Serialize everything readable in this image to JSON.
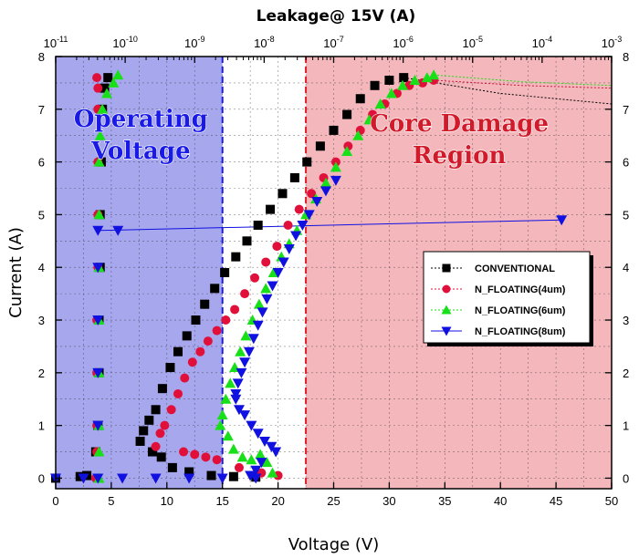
{
  "chart_data": {
    "type": "scatter",
    "xlabel": "Voltage (V)",
    "ylabel": "Current (A)",
    "top_axis_title": "Leakage@ 15V (A)",
    "xlim": [
      0,
      50
    ],
    "ylim": [
      -0.2,
      8
    ],
    "top_xlim_log10": [
      -11,
      -3
    ],
    "x_ticks": [
      "0",
      "5",
      "10",
      "15",
      "20",
      "25",
      "30",
      "35",
      "40",
      "45",
      "50"
    ],
    "y_ticks": [
      "0",
      "1",
      "2",
      "3",
      "4",
      "5",
      "6",
      "7",
      "8"
    ],
    "top_tick_labels": [
      {
        "base": "10",
        "exp": "-11"
      },
      {
        "base": "10",
        "exp": "-10"
      },
      {
        "base": "10",
        "exp": "-9"
      },
      {
        "base": "10",
        "exp": "-8"
      },
      {
        "base": "10",
        "exp": "-7"
      },
      {
        "base": "10",
        "exp": "-6"
      },
      {
        "base": "10",
        "exp": "-5"
      },
      {
        "base": "10",
        "exp": "-4"
      },
      {
        "base": "10",
        "exp": "-3"
      }
    ],
    "grid": true,
    "regions": [
      {
        "label_lines": [
          "Operating",
          "Voltage"
        ],
        "x_range": [
          0,
          15
        ],
        "color": "#a7a7ee",
        "text_color": "#1a1ae6",
        "border": "#1a1ae6"
      },
      {
        "label_lines": [
          "Core Damage",
          "Region"
        ],
        "x_range": [
          22.5,
          50
        ],
        "color": "#f4b8bc",
        "text_color": "#d11a2a",
        "border": "#e0202a"
      }
    ],
    "legend_position": "right-middle",
    "series": [
      {
        "name": "CONVENTIONAL",
        "marker": "square",
        "color": "#000000",
        "points": [
          [
            0,
            0
          ],
          [
            2.2,
            0.03
          ],
          [
            2.8,
            0.05
          ],
          [
            3.6,
            0.5
          ],
          [
            3.8,
            1.0
          ],
          [
            3.9,
            2.0
          ],
          [
            3.9,
            3.0
          ],
          [
            4.0,
            4.0
          ],
          [
            4.0,
            5.0
          ],
          [
            4.1,
            6.0
          ],
          [
            4.2,
            7.0
          ],
          [
            4.4,
            7.4
          ],
          [
            4.7,
            7.6
          ],
          [
            7.6,
            0.7
          ],
          [
            7.9,
            0.9
          ],
          [
            8.4,
            1.1
          ],
          [
            9.0,
            1.3
          ],
          [
            9.6,
            1.7
          ],
          [
            10.3,
            2.1
          ],
          [
            11.0,
            2.4
          ],
          [
            11.8,
            2.7
          ],
          [
            12.6,
            3.0
          ],
          [
            13.4,
            3.3
          ],
          [
            14.3,
            3.6
          ],
          [
            15.2,
            3.9
          ],
          [
            16.2,
            4.2
          ],
          [
            17.2,
            4.5
          ],
          [
            18.2,
            4.8
          ],
          [
            19.3,
            5.1
          ],
          [
            20.4,
            5.4
          ],
          [
            21.5,
            5.7
          ],
          [
            22.6,
            6.0
          ],
          [
            23.8,
            6.3
          ],
          [
            25.0,
            6.6
          ],
          [
            26.2,
            6.9
          ],
          [
            27.4,
            7.2
          ],
          [
            28.7,
            7.45
          ],
          [
            30.0,
            7.55
          ],
          [
            31.3,
            7.6
          ],
          [
            8.7,
            0.5
          ],
          [
            9.5,
            0.4
          ],
          [
            10.5,
            0.2
          ],
          [
            12,
            0.12
          ],
          [
            14,
            0.05
          ],
          [
            16,
            0.03
          ],
          [
            18,
            0.02
          ]
        ]
      },
      {
        "name": "N_FLOATING(4um)",
        "marker": "circle",
        "color": "#e0103a",
        "points": [
          [
            3.6,
            0.0
          ],
          [
            3.7,
            0.5
          ],
          [
            3.7,
            1.0
          ],
          [
            3.7,
            2.0
          ],
          [
            3.7,
            3.0
          ],
          [
            3.8,
            4.0
          ],
          [
            3.8,
            5.0
          ],
          [
            3.8,
            6.0
          ],
          [
            3.8,
            7.0
          ],
          [
            3.8,
            7.4
          ],
          [
            3.7,
            7.6
          ],
          [
            9.0,
            0.6
          ],
          [
            9.4,
            0.85
          ],
          [
            9.8,
            1.0
          ],
          [
            10.4,
            1.3
          ],
          [
            11.0,
            1.6
          ],
          [
            11.6,
            1.9
          ],
          [
            12.3,
            2.2
          ],
          [
            13.0,
            2.4
          ],
          [
            13.7,
            2.6
          ],
          [
            14.5,
            2.8
          ],
          [
            15.3,
            3.0
          ],
          [
            16.1,
            3.2
          ],
          [
            17.0,
            3.5
          ],
          [
            17.9,
            3.8
          ],
          [
            18.9,
            4.1
          ],
          [
            19.9,
            4.4
          ],
          [
            20.9,
            4.8
          ],
          [
            21.9,
            5.1
          ],
          [
            23.0,
            5.4
          ],
          [
            24.1,
            5.7
          ],
          [
            25.2,
            6.0
          ],
          [
            26.3,
            6.3
          ],
          [
            27.4,
            6.6
          ],
          [
            28.5,
            6.9
          ],
          [
            29.6,
            7.1
          ],
          [
            30.7,
            7.3
          ],
          [
            31.8,
            7.45
          ],
          [
            33.0,
            7.5
          ],
          [
            34.0,
            7.55
          ],
          [
            11.5,
            0.5
          ],
          [
            12.5,
            0.45
          ],
          [
            13.5,
            0.4
          ],
          [
            14.5,
            0.35
          ],
          [
            16.5,
            0.2
          ],
          [
            18.5,
            0.1
          ],
          [
            20,
            0.05
          ]
        ]
      },
      {
        "name": "N_FLOATING(6um)",
        "marker": "triangle-up",
        "color": "#18e018",
        "points": [
          [
            3.9,
            0.0
          ],
          [
            3.9,
            0.5
          ],
          [
            3.9,
            1.0
          ],
          [
            3.9,
            2.0
          ],
          [
            3.9,
            3.0
          ],
          [
            3.9,
            4.0
          ],
          [
            3.9,
            5.0
          ],
          [
            3.9,
            6.0
          ],
          [
            4.0,
            6.5
          ],
          [
            4.2,
            7.0
          ],
          [
            4.6,
            7.3
          ],
          [
            5.2,
            7.5
          ],
          [
            5.6,
            7.65
          ],
          [
            14.8,
            1.0
          ],
          [
            15.0,
            1.2
          ],
          [
            15.3,
            1.5
          ],
          [
            15.7,
            1.8
          ],
          [
            16.1,
            2.1
          ],
          [
            16.6,
            2.4
          ],
          [
            17.1,
            2.7
          ],
          [
            17.7,
            3.0
          ],
          [
            18.3,
            3.3
          ],
          [
            18.9,
            3.6
          ],
          [
            19.6,
            3.9
          ],
          [
            20.3,
            4.2
          ],
          [
            21.0,
            4.45
          ],
          [
            21.7,
            4.7
          ],
          [
            22.5,
            5.0
          ],
          [
            23.4,
            5.3
          ],
          [
            24.3,
            5.6
          ],
          [
            25.2,
            5.9
          ],
          [
            26.2,
            6.2
          ],
          [
            27.2,
            6.5
          ],
          [
            28.2,
            6.8
          ],
          [
            29.2,
            7.1
          ],
          [
            30.2,
            7.3
          ],
          [
            31.2,
            7.45
          ],
          [
            32.3,
            7.55
          ],
          [
            33.4,
            7.6
          ],
          [
            34.0,
            7.65
          ],
          [
            15.5,
            0.8
          ],
          [
            16,
            0.55
          ],
          [
            16.8,
            0.4
          ],
          [
            17.6,
            0.35
          ],
          [
            18.4,
            0.45
          ],
          [
            19,
            0.3
          ],
          [
            19.5,
            0.1
          ]
        ]
      },
      {
        "name": "N_FLOATING(8um)",
        "marker": "triangle-down",
        "color": "#1010e0",
        "points": [
          [
            0,
            0
          ],
          [
            2.5,
            0
          ],
          [
            3.8,
            0
          ],
          [
            3.8,
            1.0
          ],
          [
            3.8,
            2.0
          ],
          [
            3.8,
            3.0
          ],
          [
            3.8,
            4.0
          ],
          [
            3.8,
            4.7
          ],
          [
            5.6,
            4.7
          ],
          [
            45.5,
            4.9
          ],
          [
            6,
            0
          ],
          [
            9,
            0
          ],
          [
            12,
            0
          ],
          [
            15,
            0
          ],
          [
            18,
            0
          ],
          [
            16.2,
            1.5
          ],
          [
            16.5,
            1.3
          ],
          [
            17.0,
            1.2
          ],
          [
            17.6,
            1.0
          ],
          [
            18.2,
            0.85
          ],
          [
            18.8,
            0.7
          ],
          [
            19.4,
            0.6
          ],
          [
            19.8,
            0.5
          ],
          [
            18.5,
            0.3
          ],
          [
            18.0,
            0.15
          ],
          [
            17.5,
            0.05
          ],
          [
            16.2,
            1.6
          ],
          [
            16.4,
            1.8
          ],
          [
            16.7,
            2.0
          ],
          [
            17.0,
            2.2
          ],
          [
            17.4,
            2.4
          ],
          [
            17.8,
            2.65
          ],
          [
            18.2,
            2.9
          ],
          [
            18.6,
            3.15
          ],
          [
            19.0,
            3.4
          ],
          [
            19.5,
            3.65
          ],
          [
            20.0,
            3.9
          ],
          [
            20.5,
            4.1
          ],
          [
            21.0,
            4.35
          ],
          [
            21.6,
            4.6
          ],
          [
            22.2,
            4.8
          ],
          [
            22.8,
            5.0
          ],
          [
            23.5,
            5.25
          ],
          [
            24.3,
            5.45
          ],
          [
            25.2,
            5.65
          ]
        ]
      }
    ],
    "curves": [
      {
        "series": "CONVENTIONAL",
        "points": [
          [
            31.3,
            7.6
          ],
          [
            40,
            7.3
          ],
          [
            50,
            7.1
          ]
        ]
      },
      {
        "series": "N_FLOATING(4um)",
        "points": [
          [
            34.0,
            7.55
          ],
          [
            42,
            7.45
          ],
          [
            50,
            7.4
          ]
        ]
      },
      {
        "series": "N_FLOATING(6um)",
        "points": [
          [
            34.0,
            7.65
          ],
          [
            42,
            7.52
          ],
          [
            50,
            7.45
          ]
        ]
      },
      {
        "series": "N_FLOATING(8um)",
        "points": [
          [
            3.8,
            4.7
          ],
          [
            45.5,
            4.9
          ]
        ]
      }
    ]
  }
}
